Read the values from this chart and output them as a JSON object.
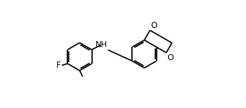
{
  "bg_color": "#ffffff",
  "line_color": "#000000",
  "line_width": 1.3,
  "font_size": 8.5,
  "figsize": [
    3.58,
    1.58
  ],
  "dpi": 100,
  "xlim": [
    0.0,
    1.0
  ],
  "ylim": [
    0.1,
    0.9
  ]
}
